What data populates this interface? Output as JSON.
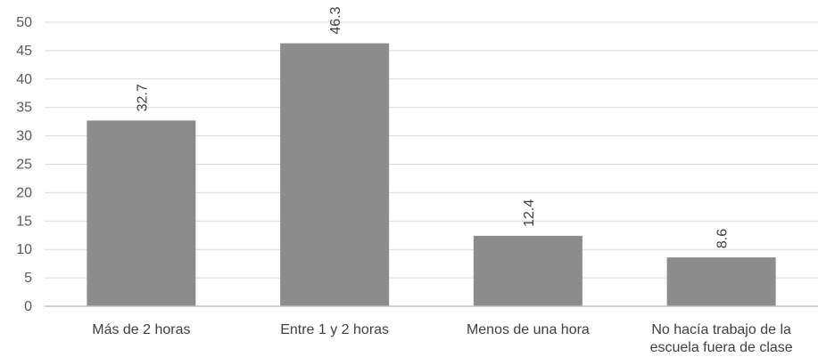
{
  "chart_data": {
    "type": "bar",
    "categories": [
      [
        "Más de 2 horas"
      ],
      [
        "Entre  1 y 2 horas"
      ],
      [
        "Menos de una hora"
      ],
      [
        "No hacía trabajo de la",
        "escuela  fuera de clase"
      ]
    ],
    "values": [
      32.7,
      46.3,
      12.4,
      8.6
    ],
    "data_labels": [
      "32.7",
      "46.3",
      "12.4",
      "8.6"
    ],
    "ylim": [
      0,
      50
    ],
    "yticks": [
      0,
      5,
      10,
      15,
      20,
      25,
      30,
      35,
      40,
      45,
      50
    ],
    "grid": true,
    "legend": "none",
    "bar_color": "#8c8c8c",
    "title": "",
    "xlabel": "",
    "ylabel": ""
  }
}
